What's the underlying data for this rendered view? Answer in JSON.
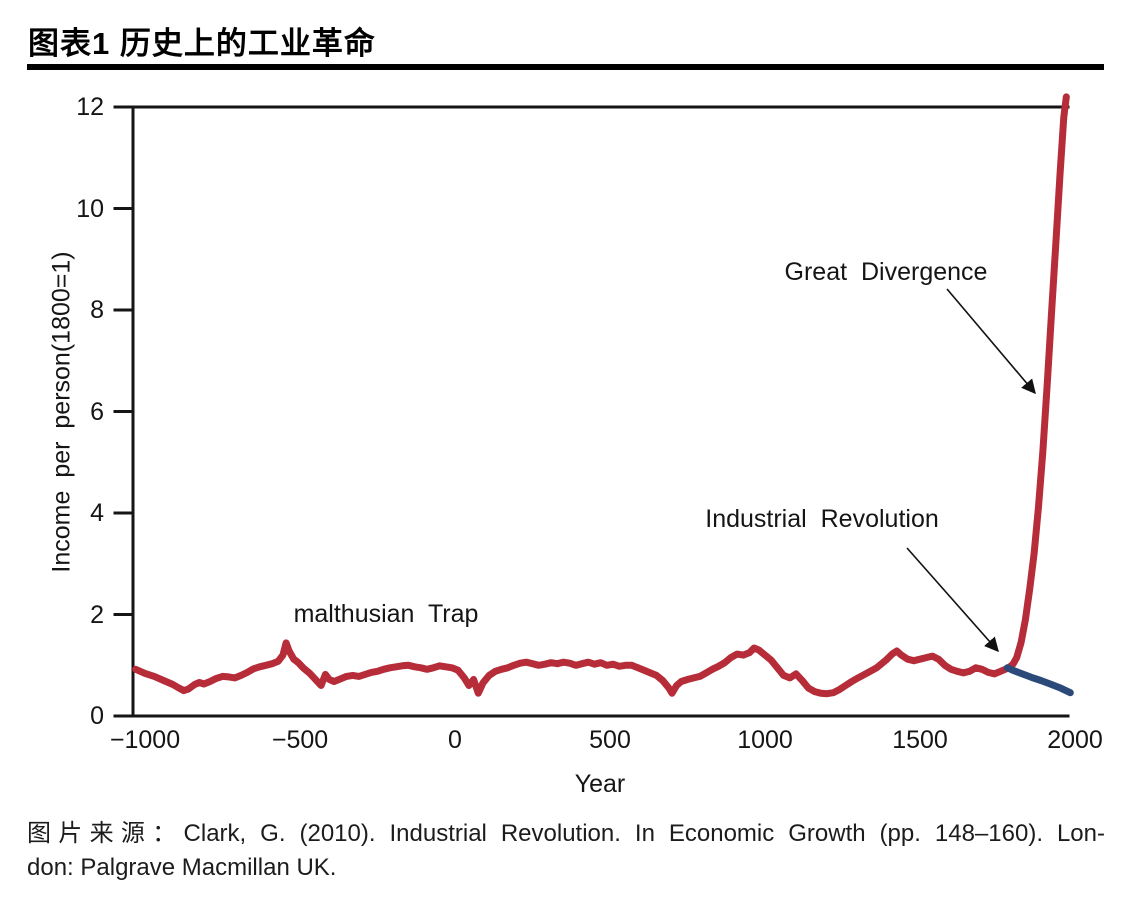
{
  "header": {
    "title": "图表1 历史上的工业革命"
  },
  "chart_data": {
    "type": "line",
    "title": "图表1 历史上的工业革命",
    "xlabel": "Year",
    "ylabel": "Income per person(1800=1)",
    "xlim": [
      -1030,
      1995
    ],
    "ylim": [
      0,
      12
    ],
    "grid": false,
    "legend": "none",
    "x_tick_values": [
      -1000,
      -500,
      0,
      500,
      1000,
      1500,
      2000
    ],
    "x_tick_labels": [
      "−1000",
      "−500",
      "0",
      "500",
      "1000",
      "1500",
      "2000"
    ],
    "y_tick_values": [
      0,
      2,
      4,
      6,
      8,
      10,
      12
    ],
    "y_tick_labels": [
      "0",
      "2",
      "4",
      "6",
      "8",
      "10",
      "12"
    ],
    "series": [
      {
        "name": "income-per-person-actual",
        "color": "#b72c39",
        "points": [
          [
            -1030,
            0.92
          ],
          [
            -1000,
            0.84
          ],
          [
            -970,
            0.78
          ],
          [
            -940,
            0.7
          ],
          [
            -910,
            0.62
          ],
          [
            -890,
            0.55
          ],
          [
            -875,
            0.5
          ],
          [
            -860,
            0.53
          ],
          [
            -840,
            0.62
          ],
          [
            -825,
            0.66
          ],
          [
            -810,
            0.63
          ],
          [
            -790,
            0.68
          ],
          [
            -770,
            0.74
          ],
          [
            -750,
            0.78
          ],
          [
            -730,
            0.77
          ],
          [
            -710,
            0.75
          ],
          [
            -690,
            0.8
          ],
          [
            -670,
            0.86
          ],
          [
            -650,
            0.93
          ],
          [
            -630,
            0.97
          ],
          [
            -610,
            1.0
          ],
          [
            -590,
            1.03
          ],
          [
            -570,
            1.08
          ],
          [
            -555,
            1.2
          ],
          [
            -545,
            1.44
          ],
          [
            -535,
            1.28
          ],
          [
            -520,
            1.12
          ],
          [
            -505,
            1.05
          ],
          [
            -490,
            0.95
          ],
          [
            -470,
            0.85
          ],
          [
            -450,
            0.72
          ],
          [
            -432,
            0.6
          ],
          [
            -418,
            0.82
          ],
          [
            -405,
            0.72
          ],
          [
            -390,
            0.68
          ],
          [
            -370,
            0.73
          ],
          [
            -350,
            0.78
          ],
          [
            -330,
            0.8
          ],
          [
            -310,
            0.78
          ],
          [
            -290,
            0.82
          ],
          [
            -270,
            0.86
          ],
          [
            -250,
            0.88
          ],
          [
            -230,
            0.92
          ],
          [
            -210,
            0.95
          ],
          [
            -190,
            0.97
          ],
          [
            -170,
            0.99
          ],
          [
            -150,
            1.0
          ],
          [
            -130,
            0.97
          ],
          [
            -110,
            0.95
          ],
          [
            -90,
            0.92
          ],
          [
            -70,
            0.95
          ],
          [
            -50,
            0.99
          ],
          [
            -30,
            0.97
          ],
          [
            -10,
            0.95
          ],
          [
            10,
            0.9
          ],
          [
            30,
            0.75
          ],
          [
            45,
            0.6
          ],
          [
            60,
            0.72
          ],
          [
            75,
            0.45
          ],
          [
            90,
            0.65
          ],
          [
            110,
            0.8
          ],
          [
            130,
            0.88
          ],
          [
            150,
            0.92
          ],
          [
            170,
            0.95
          ],
          [
            190,
            1.0
          ],
          [
            210,
            1.04
          ],
          [
            230,
            1.06
          ],
          [
            250,
            1.03
          ],
          [
            270,
            1.0
          ],
          [
            290,
            1.02
          ],
          [
            310,
            1.05
          ],
          [
            330,
            1.03
          ],
          [
            350,
            1.06
          ],
          [
            370,
            1.04
          ],
          [
            390,
            1.0
          ],
          [
            410,
            1.03
          ],
          [
            430,
            1.06
          ],
          [
            450,
            1.02
          ],
          [
            470,
            1.05
          ],
          [
            490,
            1.0
          ],
          [
            510,
            1.02
          ],
          [
            530,
            0.98
          ],
          [
            550,
            1.0
          ],
          [
            570,
            1.0
          ],
          [
            590,
            0.95
          ],
          [
            610,
            0.9
          ],
          [
            630,
            0.85
          ],
          [
            650,
            0.8
          ],
          [
            670,
            0.7
          ],
          [
            690,
            0.55
          ],
          [
            700,
            0.45
          ],
          [
            715,
            0.6
          ],
          [
            730,
            0.68
          ],
          [
            750,
            0.72
          ],
          [
            770,
            0.75
          ],
          [
            790,
            0.78
          ],
          [
            810,
            0.85
          ],
          [
            830,
            0.92
          ],
          [
            850,
            0.98
          ],
          [
            870,
            1.05
          ],
          [
            890,
            1.15
          ],
          [
            910,
            1.22
          ],
          [
            930,
            1.2
          ],
          [
            950,
            1.25
          ],
          [
            965,
            1.34
          ],
          [
            980,
            1.3
          ],
          [
            1000,
            1.2
          ],
          [
            1020,
            1.1
          ],
          [
            1040,
            0.95
          ],
          [
            1060,
            0.8
          ],
          [
            1080,
            0.75
          ],
          [
            1100,
            0.83
          ],
          [
            1120,
            0.7
          ],
          [
            1140,
            0.55
          ],
          [
            1160,
            0.48
          ],
          [
            1180,
            0.45
          ],
          [
            1200,
            0.44
          ],
          [
            1220,
            0.46
          ],
          [
            1240,
            0.52
          ],
          [
            1260,
            0.6
          ],
          [
            1280,
            0.68
          ],
          [
            1300,
            0.75
          ],
          [
            1330,
            0.85
          ],
          [
            1360,
            0.95
          ],
          [
            1390,
            1.1
          ],
          [
            1410,
            1.22
          ],
          [
            1425,
            1.28
          ],
          [
            1440,
            1.2
          ],
          [
            1460,
            1.12
          ],
          [
            1480,
            1.09
          ],
          [
            1500,
            1.12
          ],
          [
            1520,
            1.15
          ],
          [
            1540,
            1.18
          ],
          [
            1560,
            1.12
          ],
          [
            1580,
            1.0
          ],
          [
            1600,
            0.92
          ],
          [
            1620,
            0.88
          ],
          [
            1640,
            0.85
          ],
          [
            1660,
            0.88
          ],
          [
            1680,
            0.95
          ],
          [
            1700,
            0.92
          ],
          [
            1720,
            0.86
          ],
          [
            1740,
            0.83
          ],
          [
            1760,
            0.88
          ],
          [
            1775,
            0.92
          ],
          [
            1790,
            0.97
          ],
          [
            1800,
            1.02
          ],
          [
            1812,
            1.15
          ],
          [
            1826,
            1.45
          ],
          [
            1840,
            1.9
          ],
          [
            1854,
            2.5
          ],
          [
            1868,
            3.2
          ],
          [
            1882,
            4.1
          ],
          [
            1896,
            5.2
          ],
          [
            1910,
            6.5
          ],
          [
            1924,
            7.9
          ],
          [
            1938,
            9.3
          ],
          [
            1952,
            10.7
          ],
          [
            1964,
            11.8
          ],
          [
            1972,
            12.2
          ]
        ]
      },
      {
        "name": "malthusian-counterfactual",
        "color": "#2b4a7a",
        "points": [
          [
            1782,
            0.95
          ],
          [
            1800,
            0.9
          ],
          [
            1830,
            0.83
          ],
          [
            1860,
            0.76
          ],
          [
            1890,
            0.7
          ],
          [
            1920,
            0.63
          ],
          [
            1950,
            0.56
          ],
          [
            1985,
            0.46
          ]
        ]
      }
    ],
    "annotations": [
      {
        "id": "great-divergence",
        "text": "Great Divergence"
      },
      {
        "id": "industrial-revolution",
        "text": "Industrial Revolution"
      },
      {
        "id": "malthusian-trap",
        "text": "malthusian Trap"
      }
    ]
  },
  "caption": {
    "line1": "图片来源：Clark, G. (2010). Industrial Revolution. In Economic Growth (pp. 148–160). Lon-",
    "line2": "don: Palgrave Macmillan UK."
  }
}
